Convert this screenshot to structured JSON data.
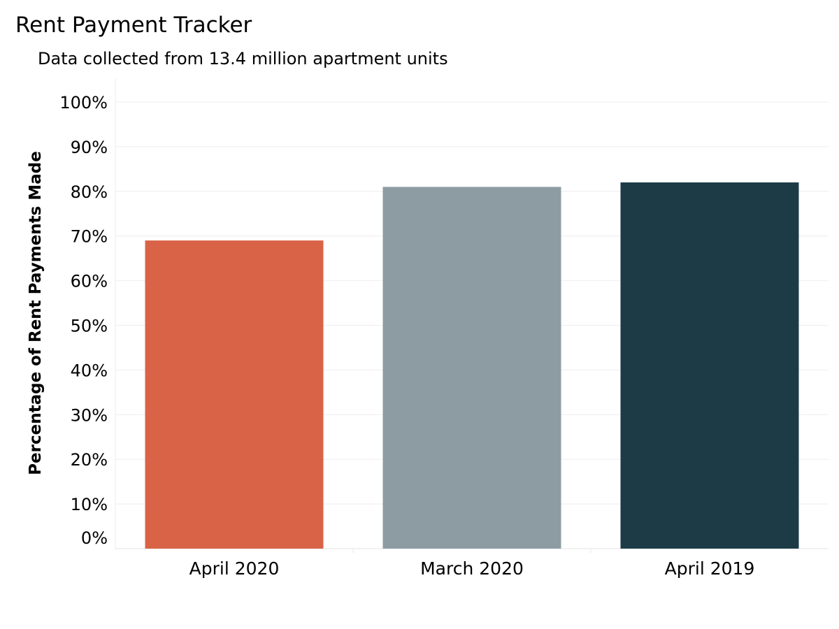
{
  "chart_data": {
    "type": "bar",
    "title": "Rent Payment Tracker",
    "subtitle": "Data collected from 13.4 million apartment units",
    "xlabel": "",
    "ylabel": "Percentage of Rent Payments Made",
    "categories": [
      "April 2020",
      "March 2020",
      "April 2019"
    ],
    "values": [
      69,
      81,
      82
    ],
    "colors": [
      "#d86347",
      "#8d9ca2",
      "#1d3b47"
    ],
    "ylim": [
      0,
      100
    ],
    "yticks": [
      0,
      10,
      20,
      30,
      40,
      50,
      60,
      70,
      80,
      90,
      100
    ],
    "ytick_labels": [
      "0%",
      "10%",
      "20%",
      "30%",
      "40%",
      "50%",
      "60%",
      "70%",
      "80%",
      "90%",
      "100%"
    ],
    "grid": true,
    "legend": "none"
  }
}
